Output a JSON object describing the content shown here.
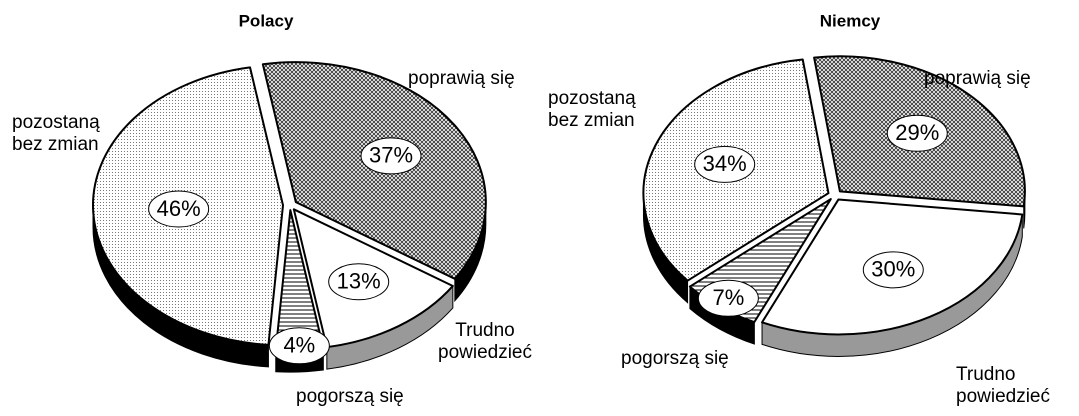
{
  "chart_data": [
    {
      "type": "pie",
      "title": "Polacy",
      "categories": [
        "poprawią się",
        "Trudno powiedzieć",
        "pogorszą się",
        "pozostaną bez zmian"
      ],
      "values": [
        37,
        13,
        4,
        46
      ],
      "value_labels": [
        "37%",
        "13%",
        "4%",
        "46%"
      ]
    },
    {
      "type": "pie",
      "title": "Niemcy",
      "categories": [
        "poprawią się",
        "Trudno powiedzieć",
        "pogorszą się",
        "pozostaną bez zmian"
      ],
      "values": [
        29,
        30,
        7,
        34
      ],
      "value_labels": [
        "29%",
        "30%",
        "7%",
        "34%"
      ]
    }
  ]
}
